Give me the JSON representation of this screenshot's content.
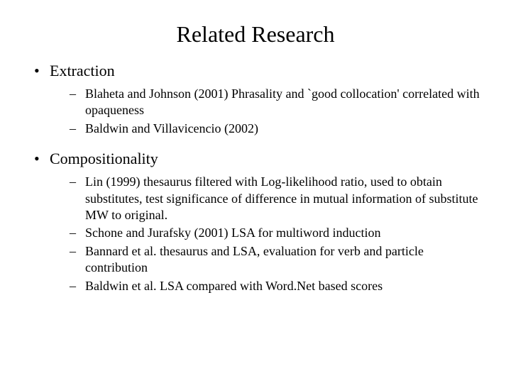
{
  "title": "Related Research",
  "sections": [
    {
      "heading": "Extraction",
      "items": [
        "Blaheta and Johnson (2001) Phrasality and `good collocation' correlated with opaqueness",
        "Baldwin and Villavicencio (2002)"
      ]
    },
    {
      "heading": " Compositionality",
      "items": [
        "Lin (1999) thesaurus filtered with Log-likelihood ratio, used to obtain substitutes, test significance of difference in mutual information of substitute MW to original.",
        "Schone and Jurafsky (2001) LSA for multiword induction",
        "Bannard et al. thesaurus and LSA, evaluation for verb and particle contribution",
        "Baldwin et al. LSA compared with  Word.Net based scores"
      ]
    }
  ],
  "styling": {
    "background_color": "#ffffff",
    "text_color": "#000000",
    "title_fontsize": 32,
    "level1_fontsize": 22,
    "level2_fontsize": 18,
    "font_family": "Times New Roman"
  }
}
